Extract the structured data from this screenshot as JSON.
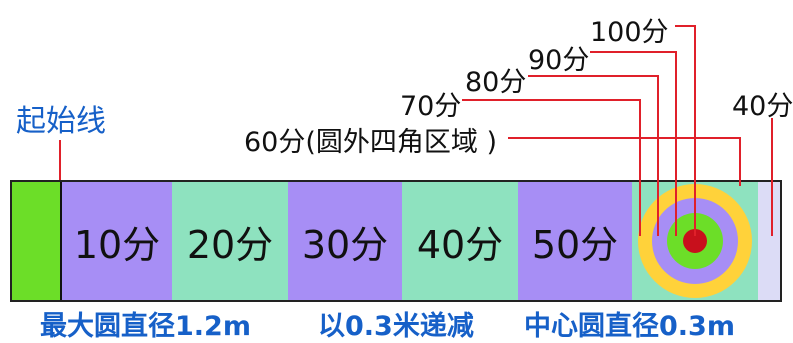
{
  "start_line_label": "起始线",
  "zones": [
    {
      "label": "",
      "color": "#6cde28"
    },
    {
      "label": "10分",
      "color": "#a78ef5"
    },
    {
      "label": "20分",
      "color": "#8ee2bf"
    },
    {
      "label": "30分",
      "color": "#a78ef5"
    },
    {
      "label": "40分",
      "color": "#8ee2bf"
    },
    {
      "label": "50分",
      "color": "#a78ef5"
    }
  ],
  "target": {
    "background_color": "#8ee2bf",
    "rings": [
      "#ffd23a",
      "#a78ef5",
      "#6cde28",
      "#c8101c"
    ],
    "right_strip_color": "#dcdcf6"
  },
  "score_labels": {
    "ring_60": "60分(圆外四角区域 )",
    "ring_70": "70分",
    "ring_80": "80分",
    "ring_90": "90分",
    "ring_100": "100分",
    "strip_40": "40分"
  },
  "bottom_text": {
    "left": "最大圆直径1.2m",
    "middle": "以0.3米递减",
    "right": "中心圆直径0.3m"
  },
  "colors": {
    "leader_line": "#e0202a",
    "accent_text": "#1660c8"
  }
}
